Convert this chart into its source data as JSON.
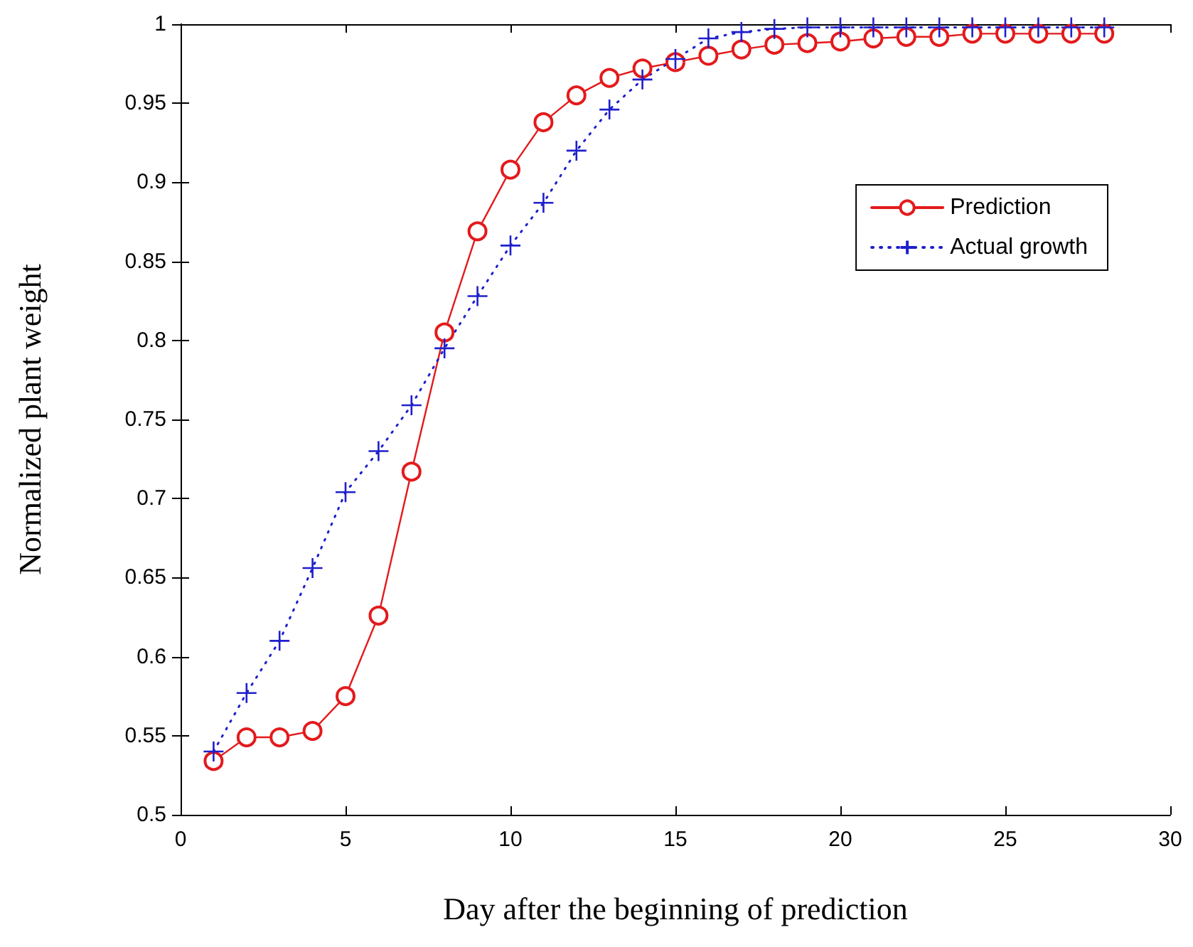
{
  "chart_data": {
    "type": "line",
    "xlabel": "Day after the beginning of prediction",
    "ylabel": "Normalized plant weight",
    "x": [
      1,
      2,
      3,
      4,
      5,
      6,
      7,
      8,
      9,
      10,
      11,
      12,
      13,
      14,
      15,
      16,
      17,
      18,
      19,
      20,
      21,
      22,
      23,
      24,
      25,
      26,
      27,
      28
    ],
    "series": [
      {
        "name": "Prediction",
        "color": "#e31a1c",
        "marker": "circle",
        "line_style": "solid",
        "values": [
          0.534,
          0.549,
          0.549,
          0.553,
          0.575,
          0.626,
          0.717,
          0.805,
          0.869,
          0.908,
          0.938,
          0.955,
          0.966,
          0.972,
          0.976,
          0.98,
          0.984,
          0.987,
          0.988,
          0.989,
          0.991,
          0.992,
          0.992,
          0.994,
          0.994,
          0.994,
          0.994,
          0.994
        ]
      },
      {
        "name": "Actual growth",
        "color": "#1f1fcc",
        "marker": "cross",
        "line_style": "dotted",
        "values": [
          0.54,
          0.577,
          0.61,
          0.656,
          0.704,
          0.73,
          0.759,
          0.795,
          0.828,
          0.86,
          0.887,
          0.92,
          0.946,
          0.965,
          0.978,
          0.991,
          0.995,
          0.997,
          0.998,
          0.998,
          0.998,
          0.998,
          0.998,
          0.998,
          0.998,
          0.998,
          0.998,
          0.998
        ]
      }
    ],
    "xlim": [
      0,
      30
    ],
    "xticks": [
      0,
      5,
      10,
      15,
      20,
      25,
      30
    ],
    "ylim": [
      0.5,
      1
    ],
    "yticks": [
      0.5,
      0.55,
      0.6,
      0.65,
      0.7,
      0.75,
      0.8,
      0.85,
      0.9,
      0.95,
      1
    ],
    "grid": false,
    "legend": "top right"
  }
}
